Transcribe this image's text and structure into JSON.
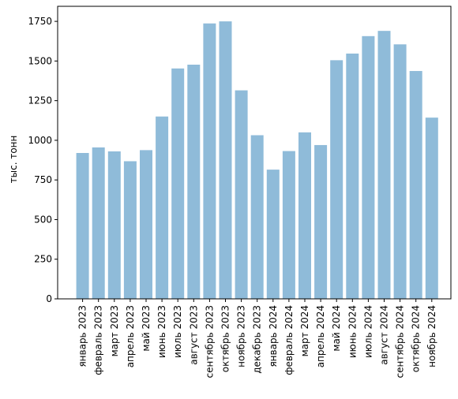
{
  "chart_data": {
    "type": "bar",
    "categories": [
      "январь 2023",
      "февраль 2023",
      "март 2023",
      "апрель 2023",
      "май 2023",
      "июнь 2023",
      "июль 2023",
      "август 2023",
      "сентябрь 2023",
      "октябрь 2023",
      "ноябрь 2023",
      "декабрь 2023",
      "январь 2024",
      "февраль 2024",
      "март 2024",
      "апрель 2024",
      "май 2024",
      "июнь 2024",
      "июль 2024",
      "август 2024",
      "сентябрь 2024",
      "октябрь 2024",
      "ноябрь 2024"
    ],
    "values": [
      920,
      955,
      930,
      868,
      938,
      1150,
      1453,
      1477,
      1737,
      1750,
      1315,
      1032,
      815,
      932,
      1050,
      970,
      1505,
      1547,
      1657,
      1690,
      1605,
      1437,
      1143
    ],
    "title": "",
    "xlabel": "",
    "ylabel": "тыс. тонн",
    "ylim": [
      0,
      1845
    ],
    "yticks": [
      0,
      250,
      500,
      750,
      1000,
      1250,
      1500,
      1750
    ],
    "bar_color": "#8fbbd9",
    "grid": false,
    "legend": "none"
  }
}
